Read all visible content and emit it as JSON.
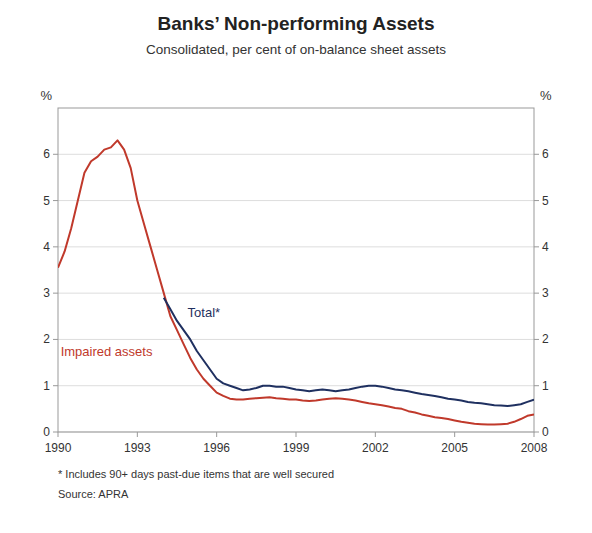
{
  "chart_data": {
    "type": "line",
    "title": "Banks’ Non-performing Assets",
    "subtitle": "Consolidated, per cent of on-balance sheet assets",
    "ylabel": "%",
    "y2label": "%",
    "footnote": "*   Includes 90+ days past-due items that are well secured",
    "source": "Source: APRA",
    "xlim": [
      1990,
      2008
    ],
    "xticks": [
      1990,
      1993,
      1996,
      1999,
      2002,
      2005,
      2008
    ],
    "ylim": [
      0,
      7
    ],
    "yticks": [
      0,
      1,
      2,
      3,
      4,
      5,
      6
    ],
    "y2lim": [
      0,
      7
    ],
    "y2ticks": [
      0,
      1,
      2,
      3,
      4,
      5,
      6
    ],
    "grid": true,
    "series": [
      {
        "color": "#c0392b",
        "x": [
          1990.0,
          1990.25,
          1990.5,
          1990.75,
          1991.0,
          1991.25,
          1991.5,
          1991.75,
          1992.0,
          1992.25,
          1992.5,
          1992.75,
          1993.0,
          1993.25,
          1993.5,
          1993.75,
          1994.0,
          1994.25,
          1994.5,
          1994.75,
          1995.0,
          1995.25,
          1995.5,
          1995.75,
          1996.0,
          1996.25,
          1996.5,
          1996.75,
          1997.0,
          1997.25,
          1997.5,
          1997.75,
          1998.0,
          1998.25,
          1998.5,
          1998.75,
          1999.0,
          1999.25,
          1999.5,
          1999.75,
          2000.0,
          2000.25,
          2000.5,
          2000.75,
          2001.0,
          2001.25,
          2001.5,
          2001.75,
          2002.0,
          2002.25,
          2002.5,
          2002.75,
          2003.0,
          2003.25,
          2003.5,
          2003.75,
          2004.0,
          2004.25,
          2004.5,
          2004.75,
          2005.0,
          2005.25,
          2005.5,
          2005.75,
          2006.0,
          2006.25,
          2006.5,
          2006.75,
          2007.0,
          2007.25,
          2007.5,
          2007.75,
          2008.0
        ],
        "values": [
          3.55,
          3.9,
          4.4,
          5.0,
          5.6,
          5.85,
          5.95,
          6.1,
          6.15,
          6.3,
          6.1,
          5.7,
          5.0,
          4.5,
          4.0,
          3.5,
          3.0,
          2.5,
          2.2,
          1.9,
          1.6,
          1.35,
          1.15,
          1.0,
          0.85,
          0.78,
          0.72,
          0.7,
          0.7,
          0.72,
          0.73,
          0.74,
          0.75,
          0.73,
          0.72,
          0.7,
          0.7,
          0.68,
          0.67,
          0.68,
          0.7,
          0.72,
          0.73,
          0.72,
          0.7,
          0.68,
          0.65,
          0.62,
          0.6,
          0.58,
          0.55,
          0.52,
          0.5,
          0.45,
          0.42,
          0.38,
          0.35,
          0.32,
          0.3,
          0.28,
          0.25,
          0.22,
          0.2,
          0.18,
          0.17,
          0.16,
          0.16,
          0.17,
          0.18,
          0.22,
          0.28,
          0.35,
          0.38
        ]
      },
      {
        "color": "#1f3060",
        "x": [
          1994.0,
          1994.25,
          1994.5,
          1994.75,
          1995.0,
          1995.25,
          1995.5,
          1995.75,
          1996.0,
          1996.25,
          1996.5,
          1996.75,
          1997.0,
          1997.25,
          1997.5,
          1997.75,
          1998.0,
          1998.25,
          1998.5,
          1998.75,
          1999.0,
          1999.25,
          1999.5,
          1999.75,
          2000.0,
          2000.25,
          2000.5,
          2000.75,
          2001.0,
          2001.25,
          2001.5,
          2001.75,
          2002.0,
          2002.25,
          2002.5,
          2002.75,
          2003.0,
          2003.25,
          2003.5,
          2003.75,
          2004.0,
          2004.25,
          2004.5,
          2004.75,
          2005.0,
          2005.25,
          2005.5,
          2005.75,
          2006.0,
          2006.25,
          2006.5,
          2006.75,
          2007.0,
          2007.25,
          2007.5,
          2007.75,
          2008.0
        ],
        "values": [
          2.9,
          2.65,
          2.4,
          2.2,
          2.0,
          1.75,
          1.55,
          1.35,
          1.15,
          1.05,
          1.0,
          0.95,
          0.9,
          0.92,
          0.95,
          1.0,
          1.0,
          0.98,
          0.98,
          0.95,
          0.92,
          0.9,
          0.88,
          0.9,
          0.92,
          0.9,
          0.88,
          0.9,
          0.92,
          0.95,
          0.98,
          1.0,
          1.0,
          0.98,
          0.95,
          0.92,
          0.9,
          0.88,
          0.85,
          0.82,
          0.8,
          0.78,
          0.75,
          0.72,
          0.7,
          0.68,
          0.65,
          0.63,
          0.62,
          0.6,
          0.58,
          0.57,
          0.56,
          0.58,
          0.6,
          0.65,
          0.7
        ]
      }
    ],
    "annotations": [
      {
        "text": "Total*",
        "x": 1994.9,
        "y": 2.55,
        "color": "#1f3060"
      },
      {
        "text": "Impaired assets",
        "x": 1990.1,
        "y": 1.72,
        "color": "#c0392b"
      }
    ]
  }
}
